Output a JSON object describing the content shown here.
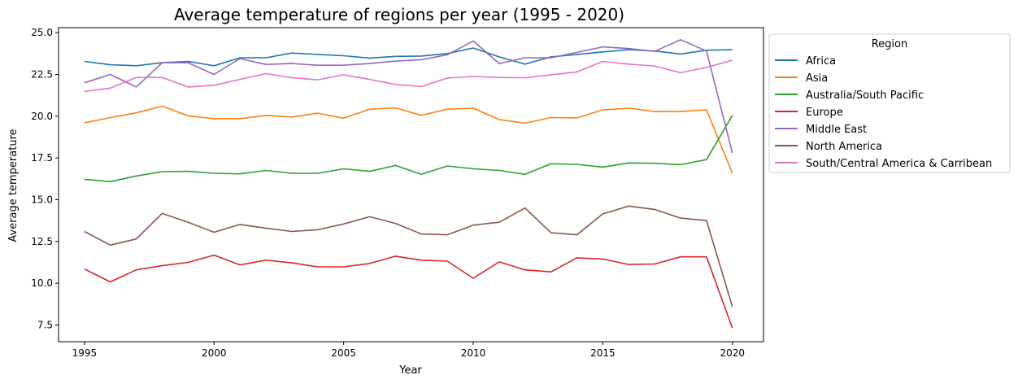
{
  "chart_data": {
    "type": "line",
    "title": "Average temperature of regions per year (1995 - 2020)",
    "xlabel": "Year",
    "ylabel": "Average temperature",
    "xlim": [
      1994,
      2021.2
    ],
    "ylim": [
      6.5,
      25.3
    ],
    "xticks": [
      1995,
      2000,
      2005,
      2010,
      2015,
      2020
    ],
    "yticks": [
      7.5,
      10.0,
      12.5,
      15.0,
      17.5,
      20.0,
      22.5,
      25.0
    ],
    "grid": false,
    "legend": {
      "title": "Region",
      "placement": "outside-right"
    },
    "x": [
      1995,
      1996,
      1997,
      1998,
      1999,
      2000,
      2001,
      2002,
      2003,
      2004,
      2005,
      2006,
      2007,
      2008,
      2009,
      2010,
      2011,
      2012,
      2013,
      2014,
      2015,
      2016,
      2017,
      2018,
      2019,
      2020
    ],
    "series": [
      {
        "name": "Africa",
        "color": "#1f77b4",
        "values": [
          23.28,
          23.08,
          23.02,
          23.2,
          23.28,
          23.02,
          23.5,
          23.5,
          23.78,
          23.7,
          23.62,
          23.48,
          23.58,
          23.6,
          23.75,
          24.08,
          23.55,
          23.12,
          23.55,
          23.7,
          23.85,
          23.98,
          23.9,
          23.72,
          23.95,
          23.98
        ]
      },
      {
        "name": "Asia",
        "color": "#ff7f0e",
        "values": [
          19.6,
          19.92,
          20.2,
          20.6,
          20.02,
          19.85,
          19.85,
          20.05,
          19.95,
          20.18,
          19.88,
          20.42,
          20.5,
          20.05,
          20.42,
          20.48,
          19.8,
          19.58,
          19.92,
          19.9,
          20.38,
          20.48,
          20.28,
          20.28,
          20.38,
          16.58
        ]
      },
      {
        "name": "Australia/South Pacific",
        "color": "#2ca02c",
        "values": [
          16.22,
          16.08,
          16.42,
          16.68,
          16.7,
          16.58,
          16.55,
          16.75,
          16.58,
          16.58,
          16.85,
          16.7,
          17.05,
          16.52,
          17.02,
          16.85,
          16.75,
          16.52,
          17.15,
          17.12,
          16.95,
          17.2,
          17.18,
          17.1,
          17.4,
          20.05
        ]
      },
      {
        "name": "Europe",
        "color": "#d62728",
        "values": [
          10.85,
          10.08,
          10.8,
          11.05,
          11.25,
          11.68,
          11.1,
          11.38,
          11.22,
          10.98,
          10.98,
          11.18,
          11.62,
          11.38,
          11.32,
          10.3,
          11.28,
          10.8,
          10.68,
          11.52,
          11.45,
          11.12,
          11.15,
          11.58,
          11.58,
          7.32
        ]
      },
      {
        "name": "Middle East",
        "color": "#9467bd",
        "values": [
          22.0,
          22.5,
          21.75,
          23.2,
          23.2,
          22.5,
          23.45,
          23.1,
          23.15,
          23.05,
          23.05,
          23.15,
          23.3,
          23.38,
          23.68,
          24.5,
          23.15,
          23.5,
          23.5,
          23.82,
          24.15,
          24.05,
          23.88,
          24.58,
          23.9,
          17.8
        ]
      },
      {
        "name": "North America",
        "color": "#8c564b",
        "values": [
          13.1,
          12.28,
          12.65,
          14.18,
          13.65,
          13.05,
          13.52,
          13.3,
          13.1,
          13.2,
          13.55,
          13.98,
          13.58,
          12.95,
          12.9,
          13.48,
          13.65,
          14.5,
          13.02,
          12.9,
          14.15,
          14.62,
          14.42,
          13.9,
          13.75,
          8.6
        ]
      },
      {
        "name": "South/Central America & Carribean",
        "color": "#e377c2",
        "values": [
          21.48,
          21.68,
          22.32,
          22.32,
          21.75,
          21.85,
          22.2,
          22.55,
          22.3,
          22.18,
          22.48,
          22.2,
          21.9,
          21.78,
          22.28,
          22.38,
          22.32,
          22.3,
          22.48,
          22.65,
          23.28,
          23.12,
          23.0,
          22.6,
          22.92,
          23.35
        ]
      }
    ]
  }
}
